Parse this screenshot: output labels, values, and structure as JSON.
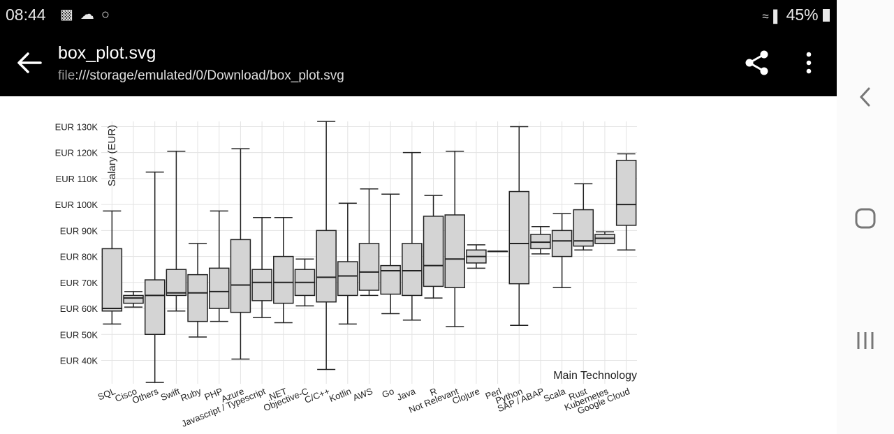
{
  "status_bar": {
    "time": "08:44",
    "battery": "45%",
    "icons": [
      "bus-icon",
      "weather-icon",
      "timer-icon",
      "wifi-icon",
      "signal-icon",
      "battery-icon"
    ]
  },
  "app_bar": {
    "title": "box_plot.svg",
    "path_scheme": "file",
    "path_rest": ":///storage/emulated/0/Download/box_plot.svg"
  },
  "chart_data": {
    "type": "box",
    "ylabel": "Salary (EUR)",
    "xlabel": "Main Technology",
    "ylim": [
      31000,
      132000
    ],
    "yticks": [
      40000,
      50000,
      60000,
      70000,
      80000,
      90000,
      100000,
      110000,
      120000,
      130000
    ],
    "ytick_labels": [
      "EUR 40K",
      "EUR 50K",
      "EUR 60K",
      "EUR 70K",
      "EUR 80K",
      "EUR 90K",
      "EUR 100K",
      "EUR 110K",
      "EUR 120K",
      "EUR 130K"
    ],
    "grid": true,
    "categories": [
      "SQL",
      "Cisco",
      "Others",
      "Swift",
      "Ruby",
      "PHP",
      "Azure",
      "Javascript / Typescript",
      ".NET",
      "Objective-C",
      "C/C++",
      "Kotlin",
      "AWS",
      "Go",
      "Java",
      "R",
      "Not Relevant",
      "Clojure",
      "Perl",
      "Python",
      "SAP / ABAP",
      "Scala",
      "Rust",
      "Kubernetes",
      "Google Cloud"
    ],
    "boxes": [
      {
        "min": 54000,
        "q1": 59000,
        "median": 60000,
        "q3": 83000,
        "max": 97500
      },
      {
        "min": 60500,
        "q1": 62000,
        "median": 64000,
        "q3": 65000,
        "max": 66500
      },
      {
        "min": 31500,
        "q1": 50000,
        "median": 65000,
        "q3": 71000,
        "max": 112500
      },
      {
        "min": 59000,
        "q1": 65000,
        "median": 66000,
        "q3": 75000,
        "max": 120500
      },
      {
        "min": 49000,
        "q1": 55000,
        "median": 66000,
        "q3": 73000,
        "max": 85000
      },
      {
        "min": 55000,
        "q1": 60000,
        "median": 66500,
        "q3": 75500,
        "max": 97500
      },
      {
        "min": 40500,
        "q1": 58500,
        "median": 69000,
        "q3": 86500,
        "max": 121500
      },
      {
        "min": 56500,
        "q1": 63000,
        "median": 70000,
        "q3": 75000,
        "max": 95000
      },
      {
        "min": 54500,
        "q1": 62000,
        "median": 70000,
        "q3": 80000,
        "max": 95000
      },
      {
        "min": 61000,
        "q1": 65000,
        "median": 70000,
        "q3": 75000,
        "max": 79000
      },
      {
        "min": 36500,
        "q1": 62500,
        "median": 72000,
        "q3": 90000,
        "max": 132000
      },
      {
        "min": 54000,
        "q1": 65000,
        "median": 72500,
        "q3": 78000,
        "max": 100500
      },
      {
        "min": 65000,
        "q1": 67000,
        "median": 74000,
        "q3": 85000,
        "max": 106000
      },
      {
        "min": 58000,
        "q1": 65500,
        "median": 74500,
        "q3": 76500,
        "max": 104000
      },
      {
        "min": 55500,
        "q1": 65000,
        "median": 74500,
        "q3": 85000,
        "max": 120000
      },
      {
        "min": 64000,
        "q1": 68500,
        "median": 76500,
        "q3": 95500,
        "max": 103500
      },
      {
        "min": 53000,
        "q1": 68000,
        "median": 79000,
        "q3": 96000,
        "max": 120500
      },
      {
        "min": 75500,
        "q1": 77500,
        "median": 80000,
        "q3": 82500,
        "max": 84500
      },
      {
        "min": 82000,
        "q1": 82000,
        "median": 82000,
        "q3": 82000,
        "max": 82000
      },
      {
        "min": 53500,
        "q1": 69500,
        "median": 85000,
        "q3": 105000,
        "max": 130000
      },
      {
        "min": 81000,
        "q1": 83000,
        "median": 85500,
        "q3": 88500,
        "max": 91500
      },
      {
        "min": 68000,
        "q1": 80000,
        "median": 86000,
        "q3": 90000,
        "max": 96500
      },
      {
        "min": 82500,
        "q1": 84000,
        "median": 86000,
        "q3": 98000,
        "max": 108000
      },
      {
        "min": 85000,
        "q1": 85000,
        "median": 87000,
        "q3": 88500,
        "max": 89500
      },
      {
        "min": 82500,
        "q1": 92000,
        "median": 100000,
        "q3": 117000,
        "max": 119500
      }
    ]
  }
}
